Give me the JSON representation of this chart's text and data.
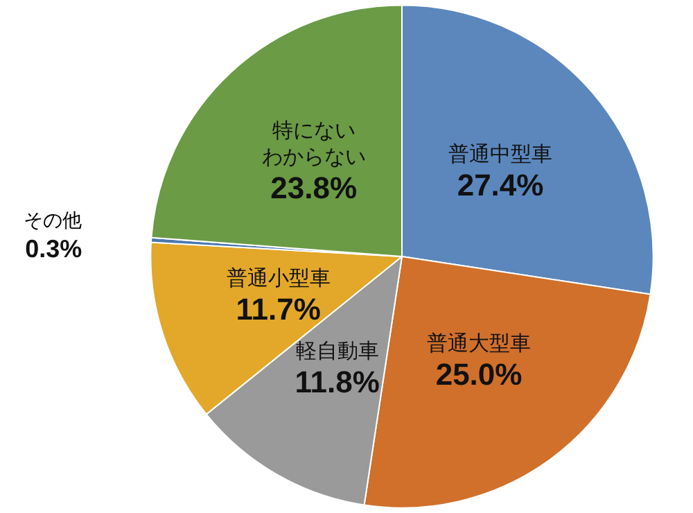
{
  "chart_data": {
    "type": "pie",
    "categories": [
      "普通中型車",
      "普通大型車",
      "軽自動車",
      "普通小型車",
      "その他",
      "特にないわからない"
    ],
    "values": [
      27.4,
      25.0,
      11.8,
      11.7,
      0.3,
      23.8
    ],
    "value_labels": [
      "27.4%",
      "25.0%",
      "11.8%",
      "11.7%",
      "0.3%",
      "23.8%"
    ],
    "colors": [
      "#5b87bd",
      "#d0702b",
      "#9a9a9a",
      "#e3a82a",
      "#4a78b0",
      "#6b9b45"
    ],
    "legend": false
  }
}
